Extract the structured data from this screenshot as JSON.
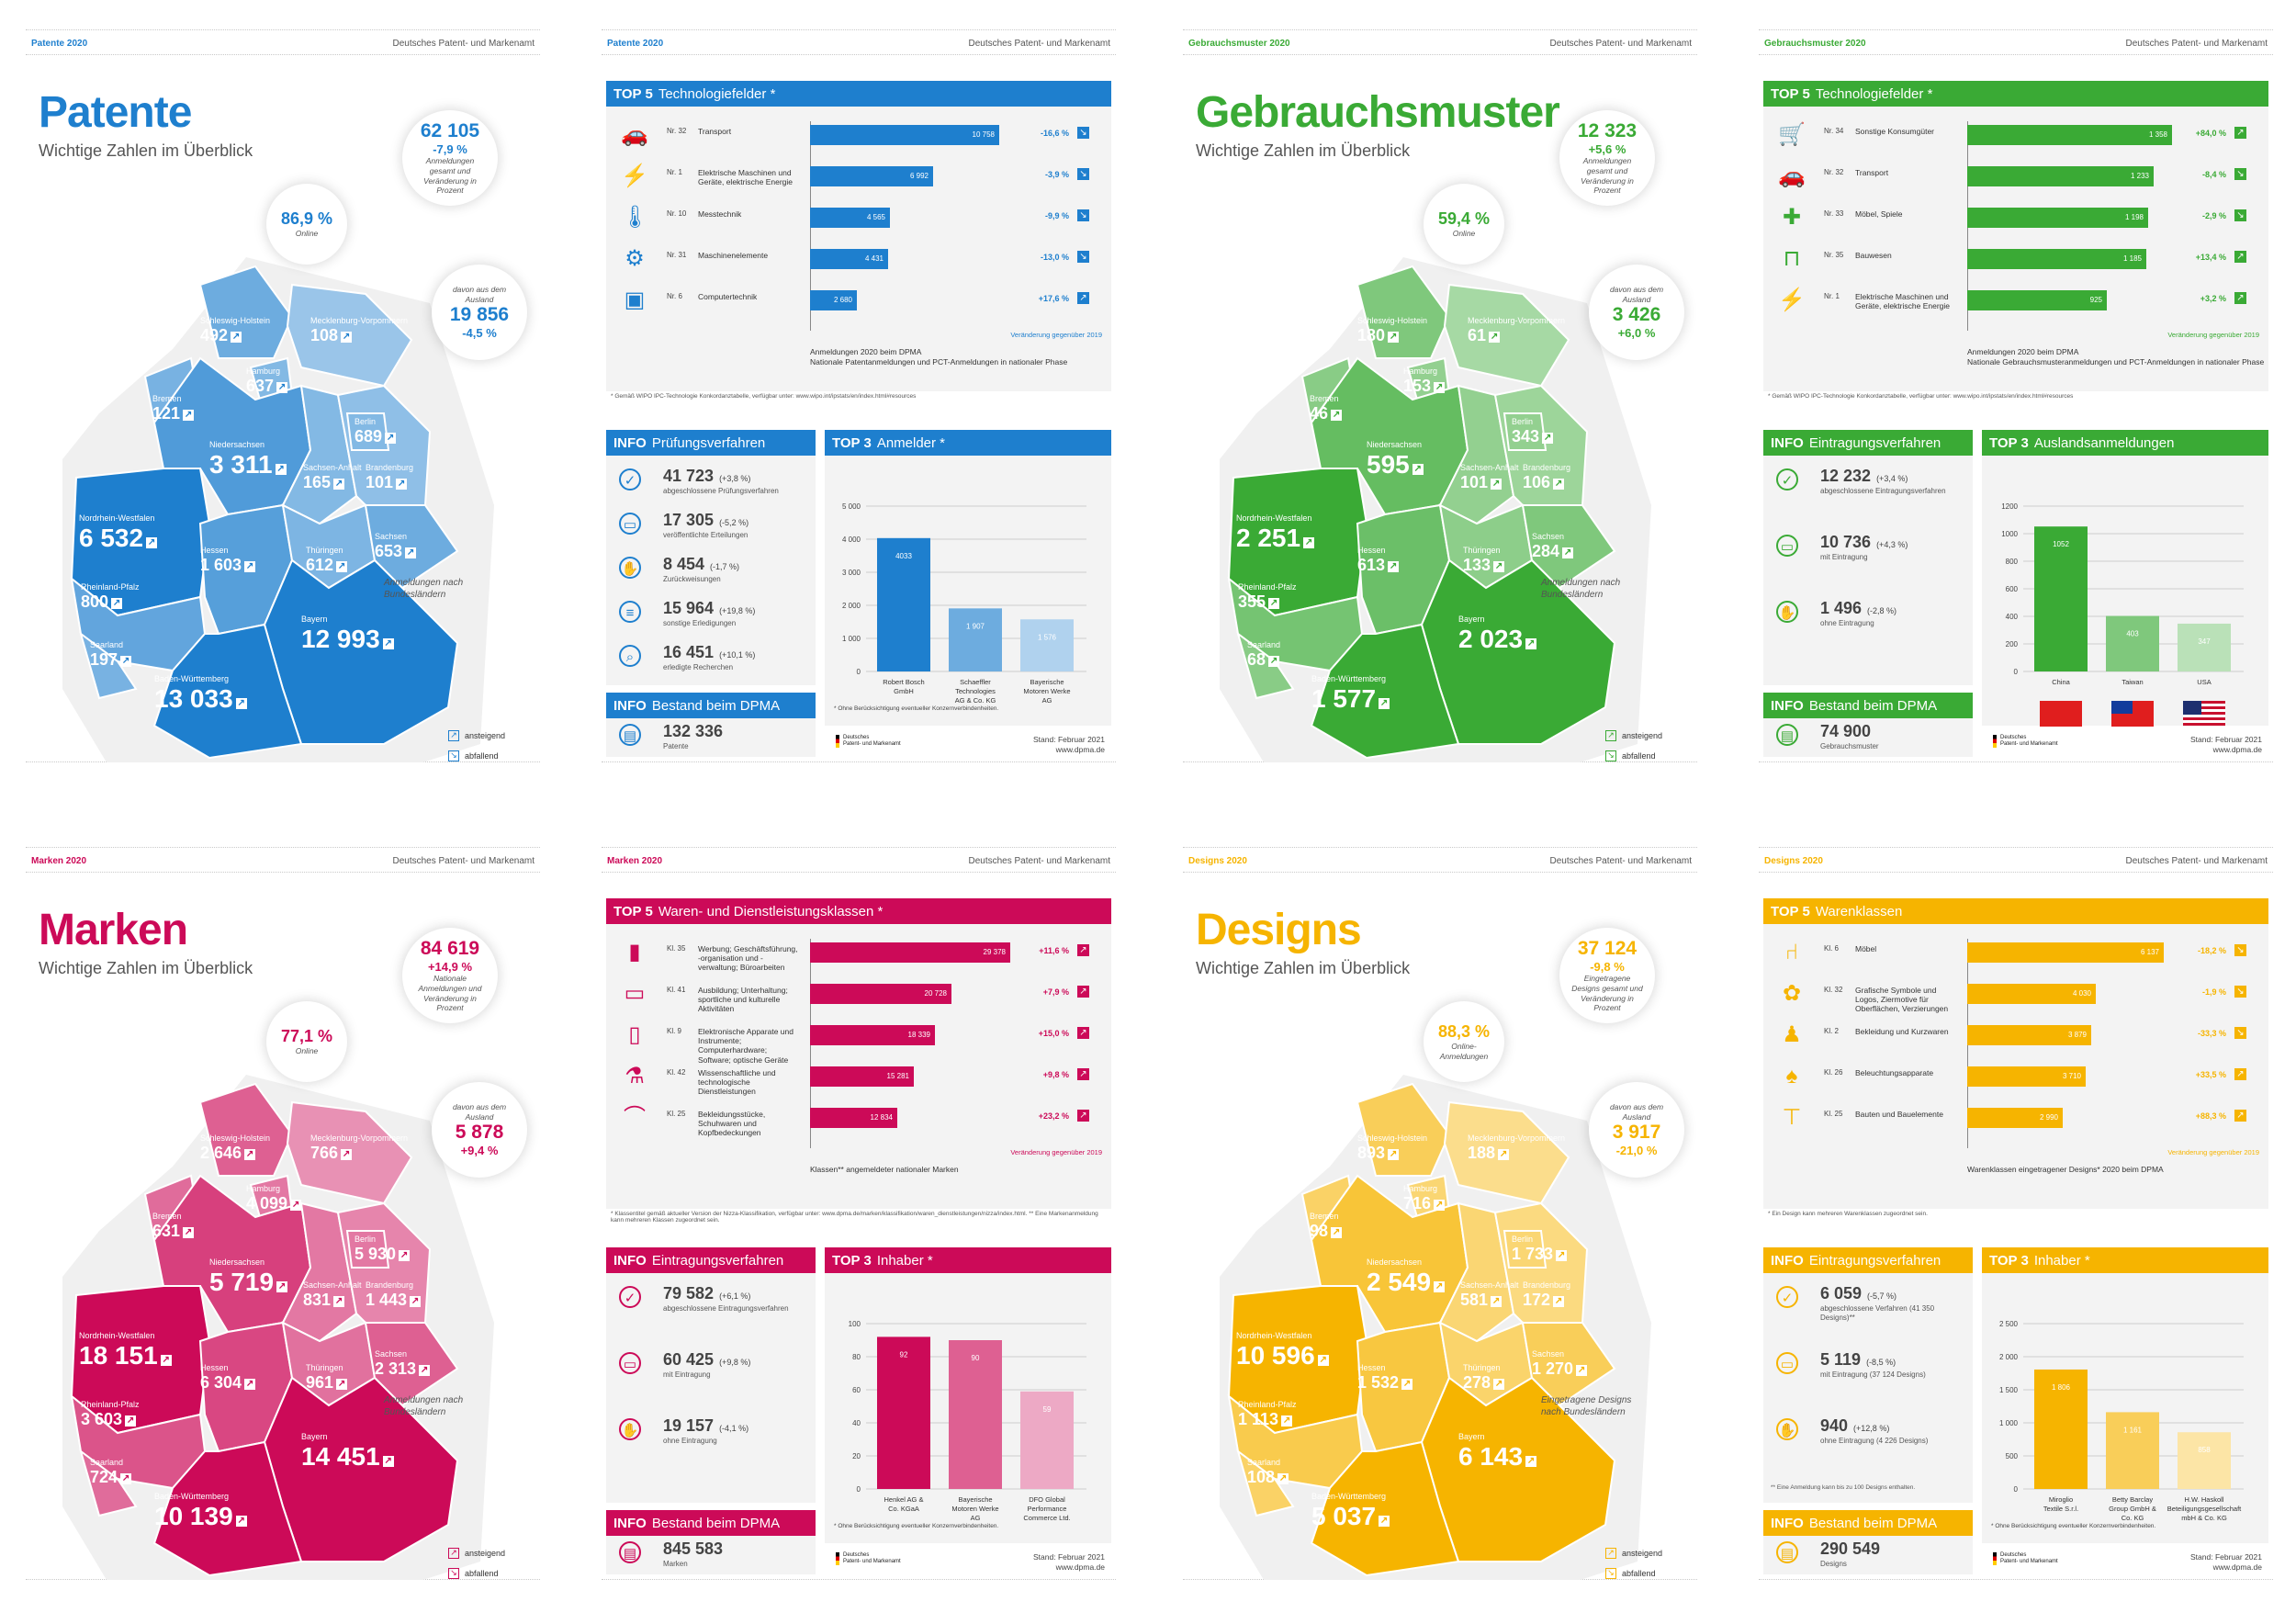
{
  "agency": "Deutsches Patent- und Markenamt",
  "colors": {
    "patente": "#1e7fce",
    "gebrauch": "#3aaa35",
    "marken": "#cc0a58",
    "designs": "#f6b400"
  },
  "legend": {
    "up": "ansteigend",
    "down": "abfallend"
  },
  "stand": {
    "date": "Stand: Februar 2021",
    "url": "www.dpma.de"
  },
  "logo": {
    "line1": "Deutsches",
    "line2": "Patent- und Markenamt"
  },
  "pages": {
    "patente_overview": {
      "header_left": "Patente 2020",
      "title": "Patente",
      "subtitle": "Wichtige Zahlen im Überblick",
      "b1": {
        "value": "62 105",
        "change": "-7,9 %",
        "label": "Anmeldungen gesamt und Veränderung in Prozent"
      },
      "b2": {
        "value": "86,9 %",
        "label": "Online"
      },
      "b3": {
        "pre": "davon aus dem Ausland",
        "value": "19 856",
        "change": "-4,5 %"
      },
      "map_note": "Anmeldungen nach Bundesländern",
      "states": {
        "sh": "492",
        "mv": "108",
        "hh": "637",
        "hb": "121",
        "ni": "3 311",
        "bb": "101",
        "be": "689",
        "st": "165",
        "nw": "6 532",
        "he": "1 603",
        "th": "612",
        "sn": "653",
        "rp": "800",
        "sl": "197",
        "by": "12 993",
        "bw": "13 033"
      }
    },
    "gebrauch_overview": {
      "header_left": "Gebrauchsmuster 2020",
      "title": "Gebrauchsmuster",
      "subtitle": "Wichtige Zahlen im Überblick",
      "b1": {
        "value": "12 323",
        "change": "+5,6 %",
        "label": "Anmeldungen gesamt und Veränderung in Prozent"
      },
      "b2": {
        "value": "59,4 %",
        "label": "Online"
      },
      "b3": {
        "pre": "davon aus dem Ausland",
        "value": "3 426",
        "change": "+6,0 %"
      },
      "map_note": "Anmeldungen nach Bundesländern",
      "states": {
        "sh": "180",
        "mv": "61",
        "hh": "153",
        "hb": "46",
        "ni": "595",
        "bb": "106",
        "be": "343",
        "st": "101",
        "nw": "2 251",
        "he": "613",
        "th": "133",
        "sn": "284",
        "rp": "355",
        "sl": "68",
        "by": "2 023",
        "bw": "1 577"
      }
    },
    "marken_overview": {
      "header_left": "Marken 2020",
      "title": "Marken",
      "subtitle": "Wichtige Zahlen im Überblick",
      "b1": {
        "value": "84 619",
        "change": "+14,9 %",
        "label": "Nationale Anmeldungen und Veränderung in Prozent"
      },
      "b2": {
        "value": "77,1 %",
        "label": "Online"
      },
      "b3": {
        "pre": "davon aus dem Ausland",
        "value": "5 878",
        "change": "+9,4 %"
      },
      "map_note": "Anmeldungen nach Bundesländern",
      "states": {
        "sh": "2 646",
        "mv": "766",
        "hh": "4 099",
        "hb": "631",
        "ni": "5 719",
        "bb": "1 443",
        "be": "5 930",
        "st": "831",
        "nw": "18 151",
        "he": "6 304",
        "th": "961",
        "sn": "2 313",
        "rp": "3 603",
        "sl": "724",
        "by": "14 451",
        "bw": "10 139"
      }
    },
    "designs_overview": {
      "header_left": "Designs 2020",
      "title": "Designs",
      "subtitle": "Wichtige Zahlen im Überblick",
      "b1": {
        "value": "37 124",
        "change": "-9,8 %",
        "label": "Eingetragene Designs gesamt und Veränderung in Prozent"
      },
      "b2": {
        "value": "88,3 %",
        "label": "Online-Anmeldungen"
      },
      "b3": {
        "pre": "davon aus dem Ausland",
        "value": "3 917",
        "change": "-21,0 %"
      },
      "map_note": "Eingetragene Designs nach Bundesländern",
      "states": {
        "sh": "893",
        "mv": "188",
        "hh": "716",
        "hb": "98",
        "ni": "2 549",
        "bb": "172",
        "be": "1 733",
        "st": "581",
        "nw": "10 596",
        "he": "1 532",
        "th": "278",
        "sn": "1 270",
        "rp": "1 113",
        "sl": "108",
        "by": "6 143",
        "bw": "5 037"
      }
    },
    "patente_detail": {
      "header_left": "Patente 2020",
      "top5_title": "Technologiefelder *",
      "top5": [
        {
          "icon": "car-icon",
          "rank": "Nr. 32",
          "label": "Transport",
          "value": "10 758",
          "num": 10758,
          "change": "-16,6 %"
        },
        {
          "icon": "power-tower-icon",
          "rank": "Nr. 1",
          "label": "Elektrische Maschinen und Geräte, elektrische Energie",
          "value": "6 992",
          "num": 6992,
          "change": "-3,9 %"
        },
        {
          "icon": "thermometer-icon",
          "rank": "Nr. 10",
          "label": "Messtechnik",
          "value": "4 565",
          "num": 4565,
          "change": "-9,9 %"
        },
        {
          "icon": "gears-icon",
          "rank": "Nr. 31",
          "label": "Maschinenelemente",
          "value": "4 431",
          "num": 4431,
          "change": "-13,0 %"
        },
        {
          "icon": "chip-icon",
          "rank": "Nr. 6",
          "label": "Computertechnik",
          "value": "2 680",
          "num": 2680,
          "change": "+17,6 %"
        }
      ],
      "top5_max": 12000,
      "top5_change_note": "Veränderung gegenüber 2019",
      "top5_foot1": "Anmeldungen 2020 beim DPMA",
      "top5_foot2": "Nationale Patentanmeldungen und PCT-Anmeldungen in nationaler Phase",
      "footnote": "* Gemäß WIPO IPC-Technologie Konkordanztabelle, verfügbar unter: www.wipo.int/ipstats/en/index.html#resources",
      "info1_title": "Prüfungsverfahren",
      "info1": [
        {
          "icon": "check-icon",
          "value": "41 723",
          "change": "(+3,8 %)",
          "label": "abgeschlossene Prüfungsverfahren"
        },
        {
          "icon": "monitor-icon",
          "value": "17 305",
          "change": "(-5,2 %)",
          "label": "veröffentlichte Erteilungen"
        },
        {
          "icon": "hand-icon",
          "value": "8 454",
          "change": "(-1,7 %)",
          "label": "Zurückweisungen"
        },
        {
          "icon": "list-icon",
          "value": "15 964",
          "change": "(+19,8 %)",
          "label": "sonstige Erledigungen"
        },
        {
          "icon": "magnifier-icon",
          "value": "16 451",
          "change": "(+10,1 %)",
          "label": "erledigte Recherchen"
        }
      ],
      "info2_title": "Bestand beim DPMA",
      "info2": {
        "icon": "document-icon",
        "value": "132 336",
        "label": "Patente"
      },
      "top3_title": "Anmelder *",
      "top3": {
        "type": "bar",
        "categories": [
          "Robert Bosch GmbH",
          "Schaeffler Technologies AG & Co. KG",
          "Bayerische Motoren Werke AG"
        ],
        "values": [
          4033,
          1907,
          1576
        ],
        "labels": [
          "4033",
          "1 907",
          "1 576"
        ],
        "ticks": [
          "0",
          "1 000",
          "2 000",
          "3 000",
          "4 000",
          "5 000"
        ],
        "ylim": [
          0,
          5000
        ]
      },
      "top3_note": "* Ohne Berücksichtigung eventueller Konzernverbindenheiten."
    },
    "gebrauch_detail": {
      "header_left": "Gebrauchsmuster 2020",
      "top5_title": "Technologiefelder *",
      "top5": [
        {
          "icon": "cart-icon",
          "rank": "Nr. 34",
          "label": "Sonstige Konsumgüter",
          "value": "1 358",
          "num": 1358,
          "change": "+84,0 %"
        },
        {
          "icon": "car-icon",
          "rank": "Nr. 32",
          "label": "Transport",
          "value": "1 233",
          "num": 1233,
          "change": "-8,4 %"
        },
        {
          "icon": "puzzle-icon",
          "rank": "Nr. 33",
          "label": "Möbel, Spiele",
          "value": "1 198",
          "num": 1198,
          "change": "-2,9 %"
        },
        {
          "icon": "crane-icon",
          "rank": "Nr. 35",
          "label": "Bauwesen",
          "value": "1 185",
          "num": 1185,
          "change": "+13,4 %"
        },
        {
          "icon": "power-tower-icon",
          "rank": "Nr. 1",
          "label": "Elektrische Maschinen und Geräte, elektrische Energie",
          "value": "925",
          "num": 925,
          "change": "+3,2 %"
        }
      ],
      "top5_max": 1400,
      "top5_change_note": "Veränderung gegenüber 2019",
      "top5_foot1": "Anmeldungen 2020 beim DPMA",
      "top5_foot2": "Nationale Gebrauchsmusteranmeldungen und PCT-Anmeldungen in nationaler Phase",
      "footnote": "* Gemäß WIPO IPC-Technologie Konkordanztabelle, verfügbar unter: www.wipo.int/ipstats/en/index.html#resources",
      "info1_title": "Eintragungsverfahren",
      "info1": [
        {
          "icon": "check-icon",
          "value": "12 232",
          "change": "(+3,4 %)",
          "label": "abgeschlossene Eintragungsverfahren"
        },
        {
          "icon": "monitor-icon",
          "value": "10 736",
          "change": "(+4,3 %)",
          "label": "mit Eintragung"
        },
        {
          "icon": "hand-icon",
          "value": "1 496",
          "change": "(-2,8 %)",
          "label": "ohne Eintragung"
        }
      ],
      "info2_title": "Bestand beim DPMA",
      "info2": {
        "icon": "document-icon",
        "value": "74 900",
        "label": "Gebrauchsmuster"
      },
      "top3_title": "Auslandsanmeldungen",
      "top3": {
        "type": "bar",
        "categories": [
          "China",
          "Taiwan",
          "USA"
        ],
        "values": [
          1052,
          403,
          347
        ],
        "labels": [
          "1052",
          "403",
          "347"
        ],
        "ticks": [
          "0",
          "200",
          "400",
          "600",
          "800",
          "1000",
          "1200"
        ],
        "ylim": [
          0,
          1200
        ],
        "flags": [
          "china-flag",
          "taiwan-flag",
          "usa-flag"
        ]
      },
      "top3_note": ""
    },
    "marken_detail": {
      "header_left": "Marken 2020",
      "top5_title": "Waren- und Dienstleistungsklassen *",
      "top5": [
        {
          "icon": "billboard-icon",
          "rank": "Kl. 35",
          "label": "Werbung; Geschäftsführung, -organisation und -verwaltung; Büroarbeiten",
          "value": "29 378",
          "num": 29378,
          "change": "+11,6 %"
        },
        {
          "icon": "presentation-icon",
          "rank": "Kl. 41",
          "label": "Ausbildung; Unterhaltung; sportliche und kulturelle Aktivitäten",
          "value": "20 728",
          "num": 20728,
          "change": "+7,9 %"
        },
        {
          "icon": "smartphone-icon",
          "rank": "Kl. 9",
          "label": "Elektronische Apparate und Instrumente; Computerhardware; Software; optische Geräte",
          "value": "18 339",
          "num": 18339,
          "change": "+15,0 %"
        },
        {
          "icon": "microscope-icon",
          "rank": "Kl. 42",
          "label": "Wissenschaftliche und technologische Dienstleistungen",
          "value": "15 281",
          "num": 15281,
          "change": "+9,8 %"
        },
        {
          "icon": "hanger-icon",
          "rank": "Kl. 25",
          "label": "Bekleidungsstücke, Schuhwaren und Kopfbedeckungen",
          "value": "12 834",
          "num": 12834,
          "change": "+23,2 %"
        }
      ],
      "top5_max": 31000,
      "top5_change_note": "Veränderung gegenüber 2019",
      "top5_foot1": "Klassen** angemeldeter nationaler Marken",
      "top5_foot2": "",
      "footnote": "* Klassentitel gemäß aktueller Version der Nizza-Klassifikation, verfügbar unter: www.dpma.de/marken/klassifikation/waren_dienstleistungen/nizza/index.html. ** Eine Markenanmeldung kann mehreren Klassen zugeordnet sein.",
      "info1_title": "Eintragungsverfahren",
      "info1": [
        {
          "icon": "check-icon",
          "value": "79 582",
          "change": "(+6,1 %)",
          "label": "abgeschlossene Eintragungsverfahren"
        },
        {
          "icon": "monitor-icon",
          "value": "60 425",
          "change": "(+9,8 %)",
          "label": "mit Eintragung"
        },
        {
          "icon": "hand-icon",
          "value": "19 157",
          "change": "(-4,1 %)",
          "label": "ohne Eintragung"
        }
      ],
      "info2_title": "Bestand beim DPMA",
      "info2": {
        "icon": "document-icon",
        "value": "845 583",
        "label": "Marken"
      },
      "top3_title": "Inhaber *",
      "top3": {
        "type": "bar",
        "categories": [
          "Henkel AG & Co. KGaA",
          "Bayerische Motoren Werke AG",
          "DFO Global Performance Commerce Ltd."
        ],
        "values": [
          92,
          90,
          59
        ],
        "labels": [
          "92",
          "90",
          "59"
        ],
        "ticks": [
          "0",
          "20",
          "40",
          "60",
          "80",
          "100"
        ],
        "ylim": [
          0,
          100
        ]
      },
      "top3_note": "* Ohne Berücksichtigung eventueller Konzernverbindenheiten."
    },
    "designs_detail": {
      "header_left": "Designs 2020",
      "top5_title": "Warenklassen",
      "top5": [
        {
          "icon": "chair-icon",
          "rank": "Kl. 6",
          "label": "Möbel",
          "value": "6 137",
          "num": 6137,
          "change": "-18,2 %"
        },
        {
          "icon": "ornament-icon",
          "rank": "Kl. 32",
          "label": "Grafische Symbole und Logos, Ziermotive für Oberflächen, Verzierungen",
          "value": "4 030",
          "num": 4030,
          "change": "-1,9 %"
        },
        {
          "icon": "shirt-icon",
          "rank": "Kl. 2",
          "label": "Bekleidung und Kurzwaren",
          "value": "3 879",
          "num": 3879,
          "change": "-33,3 %"
        },
        {
          "icon": "lamp-icon",
          "rank": "Kl. 26",
          "label": "Beleuchtungsapparate",
          "value": "3 710",
          "num": 3710,
          "change": "+33,5 %"
        },
        {
          "icon": "construction-icon",
          "rank": "Kl. 25",
          "label": "Bauten und Bauelemente",
          "value": "2 990",
          "num": 2990,
          "change": "+88,3 %"
        }
      ],
      "top5_max": 6600,
      "top5_change_note": "Veränderung gegenüber 2019",
      "top5_foot1": "Warenklassen eingetragener Designs* 2020 beim DPMA",
      "top5_foot2": "",
      "footnote": "* Ein Design kann mehreren Warenklassen zugeordnet sein.",
      "info1_title": "Eintragungsverfahren",
      "info1": [
        {
          "icon": "check-icon",
          "value": "6 059",
          "change": "(-5,7 %)",
          "label": "abgeschlossene Verfahren (41 350 Designs)**"
        },
        {
          "icon": "monitor-icon",
          "value": "5 119",
          "change": "(-8,5 %)",
          "label": "mit Eintragung (37 124 Designs)"
        },
        {
          "icon": "hand-icon",
          "value": "940",
          "change": "(+12,8 %)",
          "label": "ohne Eintragung (4 226 Designs)"
        }
      ],
      "info1_note": "** Eine Anmeldung kann bis zu 100 Designs enthalten.",
      "info2_title": "Bestand beim DPMA",
      "info2": {
        "icon": "document-icon",
        "value": "290 549",
        "label": "Designs"
      },
      "top3_title": "Inhaber *",
      "top3": {
        "type": "bar",
        "categories": [
          "Miroglio Textile S.r.l.",
          "Betty Barclay Group GmbH & Co. KG",
          "H.W. Haskoll Beteiligungsgesellschaft mbH & Co. KG"
        ],
        "values": [
          1806,
          1161,
          858
        ],
        "labels": [
          "1 806",
          "1 161",
          "858"
        ],
        "ticks": [
          "0",
          "500",
          "1 000",
          "1 500",
          "2 000",
          "2 500"
        ],
        "ylim": [
          0,
          2500
        ]
      },
      "top3_note": "* Ohne Berücksichtigung eventueller Konzernverbindenheiten."
    }
  },
  "chart_data": [
    {
      "type": "bar",
      "title": "TOP 3 Anmelder *",
      "categories": [
        "Robert Bosch GmbH",
        "Schaeffler Technologies AG & Co. KG",
        "Bayerische Motoren Werke AG"
      ],
      "values": [
        4033,
        1907,
        1576
      ],
      "ylim": [
        0,
        5000
      ]
    },
    {
      "type": "bar",
      "title": "TOP 3 Auslandsanmeldungen",
      "categories": [
        "China",
        "Taiwan",
        "USA"
      ],
      "values": [
        1052,
        403,
        347
      ],
      "ylim": [
        0,
        1200
      ]
    },
    {
      "type": "bar",
      "title": "TOP 3 Inhaber *",
      "categories": [
        "Henkel AG & Co. KGaA",
        "Bayerische Motoren Werke AG",
        "DFO Global Performance Commerce Ltd."
      ],
      "values": [
        92,
        90,
        59
      ],
      "ylim": [
        0,
        100
      ]
    },
    {
      "type": "bar",
      "title": "TOP 3 Inhaber *",
      "categories": [
        "Miroglio Textile S.r.l.",
        "Betty Barclay Group GmbH & Co. KG",
        "H.W. Haskoll Beteiligungsgesellschaft mbH & Co. KG"
      ],
      "values": [
        1806,
        1161,
        858
      ],
      "ylim": [
        0,
        2500
      ]
    }
  ]
}
